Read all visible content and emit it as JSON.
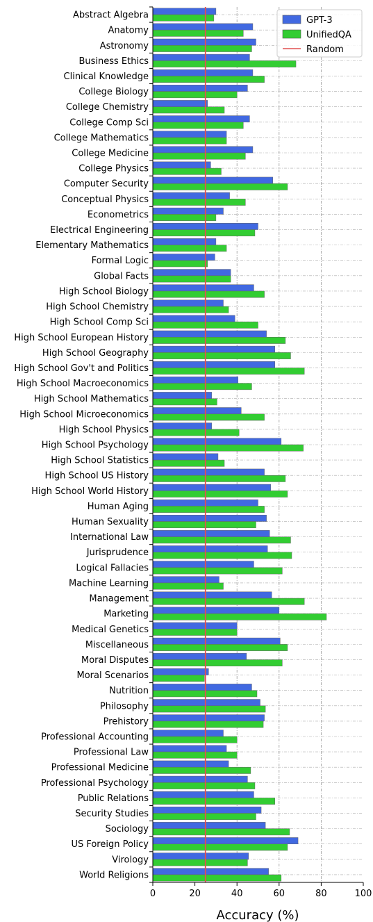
{
  "chart_data": {
    "type": "bar",
    "orientation": "horizontal",
    "xlabel": "Accuracy (%)",
    "xlim": [
      0,
      100
    ],
    "xticks": [
      0,
      20,
      40,
      60,
      80,
      100
    ],
    "grid": "vertical dash-dot at 40, 60, 80; horizontal dash-dot at each category",
    "legend_position": "top-right",
    "categories": [
      "Abstract Algebra",
      "Anatomy",
      "Astronomy",
      "Business Ethics",
      "Clinical Knowledge",
      "College Biology",
      "College Chemistry",
      "College Comp Sci",
      "College Mathematics",
      "College Medicine",
      "College Physics",
      "Computer Security",
      "Conceptual Physics",
      "Econometrics",
      "Electrical Engineering",
      "Elementary Mathematics",
      "Formal Logic",
      "Global Facts",
      "High School Biology",
      "High School Chemistry",
      "High School Comp Sci",
      "High School European History",
      "High School Geography",
      "High School Gov't and Politics",
      "High School Macroeconomics",
      "High School Mathematics",
      "High School Microeconomics",
      "High School Physics",
      "High School Psychology",
      "High School Statistics",
      "High School US History",
      "High School World History",
      "Human Aging",
      "Human Sexuality",
      "International Law",
      "Jurisprudence",
      "Logical Fallacies",
      "Machine Learning",
      "Management",
      "Marketing",
      "Medical Genetics",
      "Miscellaneous",
      "Moral Disputes",
      "Moral Scenarios",
      "Nutrition",
      "Philosophy",
      "Prehistory",
      "Professional Accounting",
      "Professional Law",
      "Professional Medicine",
      "Professional Psychology",
      "Public Relations",
      "Security Studies",
      "Sociology",
      "US Foreign Policy",
      "Virology",
      "World Religions"
    ],
    "series": [
      {
        "name": "GPT-3",
        "color": "#4169e1",
        "values": [
          30,
          47.5,
          49,
          46,
          47.5,
          45,
          26,
          46,
          35,
          47.5,
          27.5,
          57,
          36.5,
          33.5,
          50,
          30,
          29.5,
          37,
          48,
          33.5,
          39,
          54,
          58,
          58,
          40.5,
          28,
          42,
          28,
          61,
          31,
          53,
          56,
          50,
          54,
          55.5,
          54.5,
          48,
          31.5,
          56.5,
          60,
          40,
          60.5,
          44.5,
          26.5,
          47,
          51,
          53,
          33.5,
          35,
          36,
          45,
          48,
          51.5,
          53.5,
          69,
          45.5,
          55
        ]
      },
      {
        "name": "UnifiedQA",
        "color": "#32cd32",
        "values": [
          29,
          43,
          47,
          68,
          53,
          40,
          34,
          43,
          35,
          44,
          32.5,
          64,
          44,
          30,
          48.5,
          35,
          26,
          37,
          53,
          36,
          50,
          63,
          65.5,
          72,
          47,
          30.5,
          53,
          41,
          71.5,
          34,
          63,
          64,
          53,
          49,
          65.5,
          66,
          61.5,
          33.5,
          72,
          82.5,
          40,
          64,
          61.5,
          24.5,
          49.5,
          53.5,
          52.5,
          40,
          40,
          46.5,
          48.5,
          58,
          49,
          65,
          64,
          45,
          61
        ]
      }
    ],
    "reference_line": {
      "name": "Random",
      "value": 25,
      "color": "#e05050"
    }
  }
}
